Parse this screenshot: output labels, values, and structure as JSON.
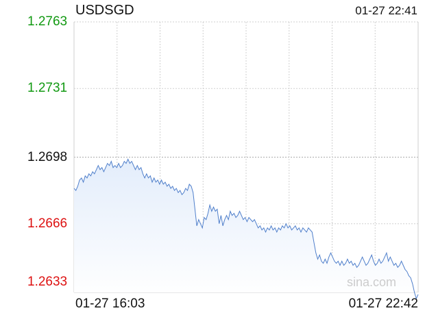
{
  "header": {
    "symbol": "USDSGD",
    "timestamp": "01-27 22:41"
  },
  "watermark": "sina.com",
  "colors": {
    "line": "#4f7fcb",
    "fill_top": "#e3edfb",
    "fill_bottom": "#ffffff",
    "up": "#119911",
    "down": "#dd1111",
    "neutral": "#111111",
    "grid": "#cfcfcf",
    "grid_base": "#aaaaaa"
  },
  "chart_data": {
    "type": "line",
    "title": "USDSGD",
    "prev_close": 1.2698,
    "y_ticks": [
      {
        "label": "1.2763",
        "value": 1.2763,
        "color": "up"
      },
      {
        "label": "1.2731",
        "value": 1.2731,
        "color": "up"
      },
      {
        "label": "1.2698",
        "value": 1.2698,
        "color": "neutral"
      },
      {
        "label": "1.2666",
        "value": 1.2666,
        "color": "down"
      },
      {
        "label": "1.2633",
        "value": 1.2633,
        "color": "down"
      }
    ],
    "ylim": [
      1.2633,
      1.2763
    ],
    "x_tick_labels": [
      "01-27 16:03",
      "01-27 22:42"
    ],
    "vertical_grid_count": 8,
    "grid": true,
    "points": [
      [
        0,
        1.2683
      ],
      [
        1,
        1.2682
      ],
      [
        2,
        1.2684
      ],
      [
        3,
        1.2687
      ],
      [
        4,
        1.2688
      ],
      [
        5,
        1.2686
      ],
      [
        6,
        1.2689
      ],
      [
        7,
        1.2688
      ],
      [
        8,
        1.269
      ],
      [
        9,
        1.2689
      ],
      [
        10,
        1.2691
      ],
      [
        11,
        1.269
      ],
      [
        12,
        1.2692
      ],
      [
        13,
        1.2694
      ],
      [
        14,
        1.2692
      ],
      [
        15,
        1.2693
      ],
      [
        16,
        1.2691
      ],
      [
        17,
        1.2693
      ],
      [
        18,
        1.2695
      ],
      [
        19,
        1.2694
      ],
      [
        20,
        1.2696
      ],
      [
        21,
        1.2693
      ],
      [
        22,
        1.2694
      ],
      [
        23,
        1.2693
      ],
      [
        24,
        1.2695
      ],
      [
        25,
        1.2693
      ],
      [
        26,
        1.2694
      ],
      [
        27,
        1.2696
      ],
      [
        28,
        1.2695
      ],
      [
        29,
        1.2697
      ],
      [
        30,
        1.2695
      ],
      [
        31,
        1.2696
      ],
      [
        32,
        1.2694
      ],
      [
        33,
        1.2692
      ],
      [
        34,
        1.2694
      ],
      [
        35,
        1.2692
      ],
      [
        36,
        1.2693
      ],
      [
        37,
        1.269
      ],
      [
        38,
        1.2688
      ],
      [
        39,
        1.269
      ],
      [
        40,
        1.2688
      ],
      [
        41,
        1.2689
      ],
      [
        42,
        1.2686
      ],
      [
        43,
        1.2688
      ],
      [
        44,
        1.2686
      ],
      [
        45,
        1.2687
      ],
      [
        46,
        1.2685
      ],
      [
        47,
        1.2687
      ],
      [
        48,
        1.2685
      ],
      [
        49,
        1.2686
      ],
      [
        50,
        1.2684
      ],
      [
        51,
        1.2685
      ],
      [
        52,
        1.2683
      ],
      [
        53,
        1.2684
      ],
      [
        54,
        1.2682
      ],
      [
        55,
        1.2683
      ],
      [
        56,
        1.2681
      ],
      [
        57,
        1.2682
      ],
      [
        58,
        1.268
      ],
      [
        59,
        1.2681
      ],
      [
        60,
        1.2683
      ],
      [
        61,
        1.2682
      ],
      [
        62,
        1.2685
      ],
      [
        63,
        1.2684
      ],
      [
        64,
        1.2681
      ],
      [
        65,
        1.2673
      ],
      [
        66,
        1.2665
      ],
      [
        67,
        1.2668
      ],
      [
        68,
        1.2666
      ],
      [
        69,
        1.2664
      ],
      [
        70,
        1.2669
      ],
      [
        71,
        1.2668
      ],
      [
        72,
        1.2671
      ],
      [
        73,
        1.2675
      ],
      [
        74,
        1.2672
      ],
      [
        75,
        1.2674
      ],
      [
        76,
        1.2672
      ],
      [
        77,
        1.2673
      ],
      [
        78,
        1.2666
      ],
      [
        79,
        1.267
      ],
      [
        80,
        1.2665
      ],
      [
        81,
        1.2668
      ],
      [
        82,
        1.267
      ],
      [
        83,
        1.2668
      ],
      [
        84,
        1.2672
      ],
      [
        85,
        1.267
      ],
      [
        86,
        1.2671
      ],
      [
        87,
        1.2669
      ],
      [
        88,
        1.267
      ],
      [
        89,
        1.2672
      ],
      [
        90,
        1.267
      ],
      [
        91,
        1.2668
      ],
      [
        92,
        1.2669
      ],
      [
        93,
        1.2667
      ],
      [
        94,
        1.2669
      ],
      [
        95,
        1.2668
      ],
      [
        96,
        1.2667
      ],
      [
        97,
        1.2668
      ],
      [
        98,
        1.2666
      ],
      [
        99,
        1.2664
      ],
      [
        100,
        1.2665
      ],
      [
        101,
        1.2663
      ],
      [
        102,
        1.2664
      ],
      [
        103,
        1.2662
      ],
      [
        104,
        1.2664
      ],
      [
        105,
        1.2663
      ],
      [
        106,
        1.2665
      ],
      [
        107,
        1.2663
      ],
      [
        108,
        1.2664
      ],
      [
        109,
        1.2662
      ],
      [
        110,
        1.2664
      ],
      [
        111,
        1.2663
      ],
      [
        112,
        1.2665
      ],
      [
        113,
        1.2664
      ],
      [
        114,
        1.2666
      ],
      [
        115,
        1.2664
      ],
      [
        116,
        1.2665
      ],
      [
        117,
        1.2663
      ],
      [
        118,
        1.2664
      ],
      [
        119,
        1.2665
      ],
      [
        120,
        1.2663
      ],
      [
        121,
        1.2664
      ],
      [
        122,
        1.2662
      ],
      [
        123,
        1.2664
      ],
      [
        124,
        1.2663
      ],
      [
        125,
        1.2662
      ],
      [
        126,
        1.2664
      ],
      [
        127,
        1.2663
      ],
      [
        128,
        1.2662
      ],
      [
        129,
        1.2657
      ],
      [
        130,
        1.2652
      ],
      [
        131,
        1.2649
      ],
      [
        132,
        1.2651
      ],
      [
        133,
        1.2648
      ],
      [
        134,
        1.2647
      ],
      [
        135,
        1.2649
      ],
      [
        136,
        1.2647
      ],
      [
        137,
        1.265
      ],
      [
        138,
        1.2652
      ],
      [
        139,
        1.265
      ],
      [
        140,
        1.2648
      ],
      [
        141,
        1.2647
      ],
      [
        142,
        1.2648
      ],
      [
        143,
        1.2646
      ],
      [
        144,
        1.2648
      ],
      [
        145,
        1.2646
      ],
      [
        146,
        1.2647
      ],
      [
        147,
        1.2649
      ],
      [
        148,
        1.2647
      ],
      [
        149,
        1.2648
      ],
      [
        150,
        1.2646
      ],
      [
        151,
        1.2647
      ],
      [
        152,
        1.2645
      ],
      [
        153,
        1.2646
      ],
      [
        154,
        1.2648
      ],
      [
        155,
        1.265
      ],
      [
        156,
        1.2648
      ],
      [
        157,
        1.2646
      ],
      [
        158,
        1.2647
      ],
      [
        159,
        1.2649
      ],
      [
        160,
        1.2651
      ],
      [
        161,
        1.2648
      ],
      [
        162,
        1.2646
      ],
      [
        163,
        1.2647
      ],
      [
        164,
        1.2649
      ],
      [
        165,
        1.2647
      ],
      [
        166,
        1.2648
      ],
      [
        167,
        1.265
      ],
      [
        168,
        1.2652
      ],
      [
        169,
        1.2648
      ],
      [
        170,
        1.265
      ],
      [
        171,
        1.2648
      ],
      [
        172,
        1.2646
      ],
      [
        173,
        1.2647
      ],
      [
        174,
        1.2645
      ],
      [
        175,
        1.2646
      ],
      [
        176,
        1.2648
      ],
      [
        177,
        1.2646
      ],
      [
        178,
        1.2644
      ],
      [
        179,
        1.2643
      ],
      [
        180,
        1.2641
      ],
      [
        181,
        1.264
      ],
      [
        182,
        1.2637
      ],
      [
        183,
        1.2633
      ],
      [
        184,
        1.263
      ],
      [
        185,
        1.2632
      ]
    ]
  }
}
